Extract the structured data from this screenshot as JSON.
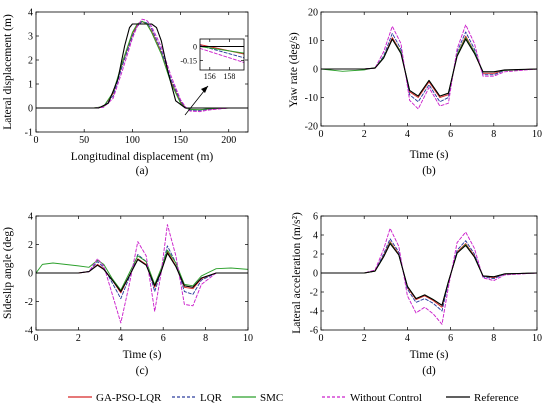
{
  "legend": [
    {
      "name": "GA-PSO-LQR",
      "color": "#d62728",
      "dash": "solid"
    },
    {
      "name": "LQR",
      "color": "#2c3e9e",
      "dash": "dashed"
    },
    {
      "name": "SMC",
      "color": "#2ca02c",
      "dash": "solid"
    },
    {
      "name": "Without Control",
      "color": "#cc22cc",
      "dash": "dashed"
    },
    {
      "name": "Reference",
      "color": "#000000",
      "dash": "solid"
    }
  ],
  "chart_data": [
    {
      "id": "a",
      "type": "line",
      "caption": "(a)",
      "xlabel": "Longitudinal displacement (m)",
      "ylabel": "Lateral displacement (m)",
      "xlim": [
        0,
        220
      ],
      "ylim": [
        -1,
        4
      ],
      "xticks": [
        0,
        50,
        100,
        150,
        200
      ],
      "yticks": [
        -1,
        0,
        1,
        2,
        3,
        4
      ],
      "series": [
        {
          "name": "GA-PSO-LQR",
          "x": [
            0,
            60,
            70,
            80,
            90,
            100,
            105,
            110,
            115,
            120,
            130,
            140,
            150,
            155,
            160,
            170,
            180,
            200,
            220
          ],
          "y": [
            0,
            0,
            0.05,
            0.6,
            1.9,
            3.1,
            3.45,
            3.6,
            3.5,
            3.2,
            2.3,
            1.1,
            0.25,
            0.02,
            -0.07,
            -0.08,
            -0.04,
            0,
            0
          ]
        },
        {
          "name": "LQR",
          "x": [
            0,
            60,
            70,
            80,
            90,
            100,
            105,
            110,
            115,
            120,
            130,
            140,
            150,
            155,
            160,
            170,
            180,
            200,
            220
          ],
          "y": [
            0,
            0,
            0.04,
            0.5,
            1.8,
            3.0,
            3.4,
            3.6,
            3.55,
            3.3,
            2.4,
            1.2,
            0.3,
            0.03,
            -0.09,
            -0.1,
            -0.05,
            0,
            0
          ]
        },
        {
          "name": "SMC",
          "x": [
            0,
            60,
            70,
            80,
            90,
            100,
            105,
            110,
            115,
            120,
            130,
            140,
            150,
            155,
            160,
            170,
            180,
            200,
            220
          ],
          "y": [
            0,
            0,
            0.06,
            0.65,
            1.95,
            3.15,
            3.5,
            3.62,
            3.5,
            3.15,
            2.25,
            1.05,
            0.2,
            0,
            -0.06,
            -0.07,
            -0.03,
            0,
            0
          ]
        },
        {
          "name": "Without Control",
          "x": [
            0,
            60,
            70,
            80,
            90,
            100,
            105,
            110,
            115,
            120,
            130,
            140,
            150,
            155,
            160,
            170,
            180,
            200,
            220
          ],
          "y": [
            0,
            0,
            0.03,
            0.4,
            1.6,
            2.9,
            3.4,
            3.7,
            3.65,
            3.4,
            2.55,
            1.35,
            0.35,
            0.05,
            -0.13,
            -0.15,
            -0.08,
            0,
            0
          ]
        },
        {
          "name": "Reference",
          "x": [
            0,
            65,
            75,
            85,
            92,
            97,
            100,
            120,
            125,
            130,
            137,
            145,
            155,
            220
          ],
          "y": [
            0,
            0,
            0.2,
            1.2,
            2.6,
            3.35,
            3.5,
            3.5,
            3.35,
            2.8,
            1.5,
            0.3,
            0,
            0
          ]
        }
      ],
      "inset": {
        "xlim": [
          155,
          159.5
        ],
        "ylim": [
          -0.25,
          0.08
        ],
        "xticks": [
          156,
          158
        ],
        "yticks": [
          0,
          -0.15
        ],
        "series": [
          {
            "name": "GA-PSO-LQR",
            "x": [
              155,
              159.5
            ],
            "y": [
              0.02,
              -0.08
            ]
          },
          {
            "name": "LQR",
            "x": [
              155,
              159.5
            ],
            "y": [
              0.01,
              -0.12
            ]
          },
          {
            "name": "SMC",
            "x": [
              155,
              159.5
            ],
            "y": [
              0.0,
              -0.07
            ]
          },
          {
            "name": "Without Control",
            "x": [
              155,
              159.5
            ],
            "y": [
              -0.02,
              -0.17
            ]
          },
          {
            "name": "Reference",
            "x": [
              155,
              159.5
            ],
            "y": [
              0,
              0
            ]
          }
        ]
      }
    },
    {
      "id": "b",
      "type": "line",
      "caption": "(b)",
      "xlabel": "Time (s)",
      "ylabel": "Yaw rate (deg/s)",
      "xlim": [
        0,
        10
      ],
      "ylim": [
        -20,
        20
      ],
      "xticks": [
        0,
        2,
        4,
        6,
        8,
        10
      ],
      "yticks": [
        -20,
        -10,
        0,
        10,
        20
      ],
      "series": [
        {
          "name": "GA-PSO-LQR",
          "x": [
            0,
            2,
            2.5,
            2.9,
            3.3,
            3.7,
            4.1,
            4.5,
            5.0,
            5.5,
            5.9,
            6.3,
            6.7,
            7.1,
            7.5,
            8.0,
            8.5,
            10
          ],
          "y": [
            0,
            0,
            0.3,
            4,
            11,
            6,
            -8,
            -10,
            -4.5,
            -10,
            -9,
            5,
            11.5,
            6,
            -1.5,
            -1.5,
            -0.5,
            0
          ]
        },
        {
          "name": "LQR",
          "x": [
            0,
            2,
            2.5,
            2.9,
            3.3,
            3.7,
            4.1,
            4.5,
            5.0,
            5.5,
            5.9,
            6.3,
            6.7,
            7.1,
            7.5,
            8.0,
            8.5,
            10
          ],
          "y": [
            0,
            0,
            0.3,
            4.5,
            12.5,
            7,
            -9,
            -11.5,
            -5.5,
            -11.5,
            -10,
            6,
            13,
            7,
            -2,
            -2,
            -0.5,
            0
          ]
        },
        {
          "name": "SMC",
          "x": [
            0,
            1,
            2,
            2.5,
            2.9,
            3.3,
            3.7,
            4.1,
            4.5,
            5.0,
            5.5,
            5.9,
            6.3,
            6.7,
            7.1,
            7.5,
            8.0,
            8.5,
            10
          ],
          "y": [
            0,
            -0.8,
            -0.3,
            0.5,
            4,
            10.5,
            6,
            -7.5,
            -9.5,
            -4,
            -9.5,
            -8.5,
            5,
            11,
            6,
            -1,
            -1,
            -0.5,
            0
          ]
        },
        {
          "name": "Without Control",
          "x": [
            0,
            2,
            2.5,
            2.9,
            3.3,
            3.7,
            4.1,
            4.5,
            5.0,
            5.5,
            5.9,
            6.3,
            6.7,
            7.1,
            7.5,
            8.0,
            8.5,
            10
          ],
          "y": [
            0,
            0,
            0.3,
            6,
            15,
            9,
            -11,
            -14,
            -6.5,
            -13,
            -12,
            7,
            15.5,
            9,
            -2.5,
            -2.5,
            -1,
            0
          ]
        },
        {
          "name": "Reference",
          "x": [
            0,
            2,
            2.5,
            2.9,
            3.3,
            3.7,
            4.1,
            4.5,
            5.0,
            5.5,
            5.9,
            6.3,
            6.7,
            7.1,
            7.5,
            8.0,
            8.5,
            10
          ],
          "y": [
            0,
            0,
            0.3,
            3.8,
            10.5,
            5.5,
            -7.5,
            -9.5,
            -4,
            -9.5,
            -8.5,
            4.5,
            10.5,
            5.5,
            -1,
            -1,
            -0.3,
            0
          ]
        }
      ]
    },
    {
      "id": "c",
      "type": "line",
      "caption": "(c)",
      "xlabel": "Time (s)",
      "ylabel": "Sideslip angle (deg)",
      "xlim": [
        0,
        10
      ],
      "ylim": [
        -4,
        4
      ],
      "xticks": [
        0,
        2,
        4,
        6,
        8,
        10
      ],
      "yticks": [
        -4,
        -2,
        0,
        2,
        4
      ],
      "series": [
        {
          "name": "GA-PSO-LQR",
          "x": [
            0,
            2,
            2.5,
            2.9,
            3.2,
            3.6,
            4.0,
            4.4,
            4.8,
            5.2,
            5.6,
            5.9,
            6.2,
            6.6,
            7.0,
            7.4,
            7.8,
            8.5,
            10
          ],
          "y": [
            0,
            0,
            0.1,
            0.6,
            0.3,
            -0.5,
            -1.4,
            -0.2,
            1.0,
            0.6,
            -1.0,
            0.1,
            1.5,
            0.5,
            -1.0,
            -1.1,
            -0.4,
            0,
            0
          ]
        },
        {
          "name": "LQR",
          "x": [
            0,
            2,
            2.5,
            2.9,
            3.2,
            3.6,
            4.0,
            4.4,
            4.8,
            5.2,
            5.6,
            5.9,
            6.2,
            6.6,
            7.0,
            7.4,
            7.8,
            8.5,
            10
          ],
          "y": [
            0,
            0,
            0.1,
            0.8,
            0.4,
            -0.7,
            -1.8,
            -0.3,
            1.3,
            0.8,
            -1.3,
            0.1,
            1.9,
            0.7,
            -1.3,
            -1.5,
            -0.5,
            0,
            0
          ]
        },
        {
          "name": "SMC",
          "x": [
            0,
            0.3,
            0.8,
            2,
            2.5,
            2.9,
            3.2,
            3.6,
            4.0,
            4.4,
            4.8,
            5.2,
            5.6,
            5.9,
            6.2,
            6.6,
            7.0,
            7.4,
            7.8,
            8.5,
            9.2,
            10
          ],
          "y": [
            0,
            0.6,
            0.7,
            0.5,
            0.4,
            0.9,
            0.6,
            -0.4,
            -1.2,
            0,
            1.2,
            0.8,
            -0.8,
            0.3,
            1.6,
            0.7,
            -0.8,
            -0.9,
            -0.2,
            0.3,
            0.35,
            0.25
          ]
        },
        {
          "name": "Without Control",
          "x": [
            0,
            2,
            2.5,
            2.9,
            3.2,
            3.6,
            4.0,
            4.4,
            4.8,
            5.2,
            5.6,
            5.9,
            6.2,
            6.6,
            7.0,
            7.4,
            7.8,
            8.5,
            10
          ],
          "y": [
            0,
            0,
            0.1,
            1.0,
            0.5,
            -1.5,
            -3.5,
            -0.8,
            2.2,
            1.2,
            -2.7,
            0,
            3.4,
            1.2,
            -2.2,
            -2.3,
            -0.8,
            0,
            0
          ]
        },
        {
          "name": "Reference",
          "x": [
            0,
            2,
            2.5,
            2.9,
            3.2,
            3.6,
            4.0,
            4.4,
            4.8,
            5.2,
            5.6,
            5.9,
            6.2,
            6.6,
            7.0,
            7.4,
            7.8,
            8.5,
            10
          ],
          "y": [
            0,
            0,
            0.1,
            0.55,
            0.25,
            -0.5,
            -1.3,
            -0.2,
            0.95,
            0.55,
            -0.9,
            0.1,
            1.4,
            0.45,
            -0.9,
            -1.0,
            -0.35,
            0,
            0
          ]
        }
      ]
    },
    {
      "id": "d",
      "type": "line",
      "caption": "(d)",
      "xlabel": "Time (s)",
      "ylabel": "Lateral acceleration (m/s²)",
      "xlim": [
        0,
        10
      ],
      "ylim": [
        -6,
        6
      ],
      "xticks": [
        0,
        2,
        4,
        6,
        8,
        10
      ],
      "yticks": [
        -6,
        -4,
        -2,
        0,
        2,
        4,
        6
      ],
      "series": [
        {
          "name": "GA-PSO-LQR",
          "x": [
            0,
            2,
            2.5,
            2.9,
            3.2,
            3.6,
            4.0,
            4.4,
            4.8,
            5.2,
            5.6,
            5.9,
            6.3,
            6.7,
            7.1,
            7.5,
            8.0,
            8.5,
            10
          ],
          "y": [
            0,
            0,
            0.2,
            1.8,
            3.3,
            2.0,
            -1.5,
            -2.8,
            -2.4,
            -2.9,
            -3.6,
            -1.0,
            2.2,
            3.1,
            1.8,
            -0.3,
            -0.5,
            -0.1,
            0
          ]
        },
        {
          "name": "LQR",
          "x": [
            0,
            2,
            2.5,
            2.9,
            3.2,
            3.6,
            4.0,
            4.4,
            4.8,
            5.2,
            5.6,
            5.9,
            6.3,
            6.7,
            7.1,
            7.5,
            8.0,
            8.5,
            10
          ],
          "y": [
            0,
            0,
            0.2,
            2.0,
            3.6,
            2.2,
            -1.7,
            -3.1,
            -2.7,
            -3.2,
            -4.0,
            -1.1,
            2.4,
            3.4,
            2.0,
            -0.4,
            -0.6,
            -0.1,
            0
          ]
        },
        {
          "name": "SMC",
          "x": [
            0,
            2,
            2.5,
            2.9,
            3.2,
            3.6,
            4.0,
            4.4,
            4.8,
            5.2,
            5.6,
            5.9,
            6.3,
            6.7,
            7.1,
            7.5,
            8.0,
            8.5,
            10
          ],
          "y": [
            0,
            0,
            0.2,
            1.7,
            3.2,
            1.9,
            -1.4,
            -2.7,
            -2.3,
            -2.8,
            -3.4,
            -0.9,
            2.1,
            3.0,
            1.7,
            -0.3,
            -0.4,
            -0.1,
            0
          ]
        },
        {
          "name": "Without Control",
          "x": [
            0,
            2,
            2.5,
            2.9,
            3.2,
            3.6,
            4.0,
            4.4,
            4.8,
            5.2,
            5.6,
            5.9,
            6.3,
            6.7,
            7.1,
            7.5,
            8.0,
            8.5,
            10
          ],
          "y": [
            0,
            0,
            0.3,
            2.5,
            4.7,
            2.8,
            -2.4,
            -4.2,
            -3.6,
            -4.3,
            -5.4,
            -1.5,
            3.2,
            4.3,
            2.6,
            -0.5,
            -0.8,
            -0.2,
            0
          ]
        },
        {
          "name": "Reference",
          "x": [
            0,
            2,
            2.5,
            2.9,
            3.2,
            3.6,
            4.0,
            4.4,
            4.8,
            5.2,
            5.6,
            5.9,
            6.3,
            6.7,
            7.1,
            7.5,
            8.0,
            8.5,
            10
          ],
          "y": [
            0,
            0,
            0.2,
            1.7,
            3.1,
            1.9,
            -1.4,
            -2.7,
            -2.3,
            -2.8,
            -3.4,
            -0.9,
            2.1,
            2.9,
            1.7,
            -0.3,
            -0.4,
            -0.1,
            0
          ]
        }
      ]
    }
  ]
}
